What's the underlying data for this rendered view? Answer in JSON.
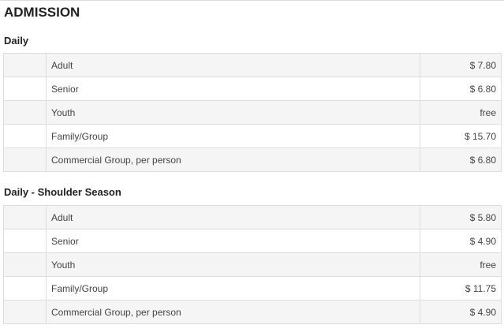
{
  "title": "ADMISSION",
  "sections": [
    {
      "heading": "Daily",
      "rows": [
        {
          "label": "Adult",
          "price": "$ 7.80"
        },
        {
          "label": "Senior",
          "price": "$ 6.80"
        },
        {
          "label": "Youth",
          "price": "free"
        },
        {
          "label": "Family/Group",
          "price": "$ 15.70"
        },
        {
          "label": "Commercial Group, per person",
          "price": "$ 6.80"
        }
      ]
    },
    {
      "heading": "Daily - Shoulder Season",
      "rows": [
        {
          "label": "Adult",
          "price": "$ 5.80"
        },
        {
          "label": "Senior",
          "price": "$ 4.90"
        },
        {
          "label": "Youth",
          "price": "free"
        },
        {
          "label": "Family/Group",
          "price": "$ 11.75"
        },
        {
          "label": "Commercial Group, per person",
          "price": "$ 4.90"
        }
      ]
    }
  ]
}
